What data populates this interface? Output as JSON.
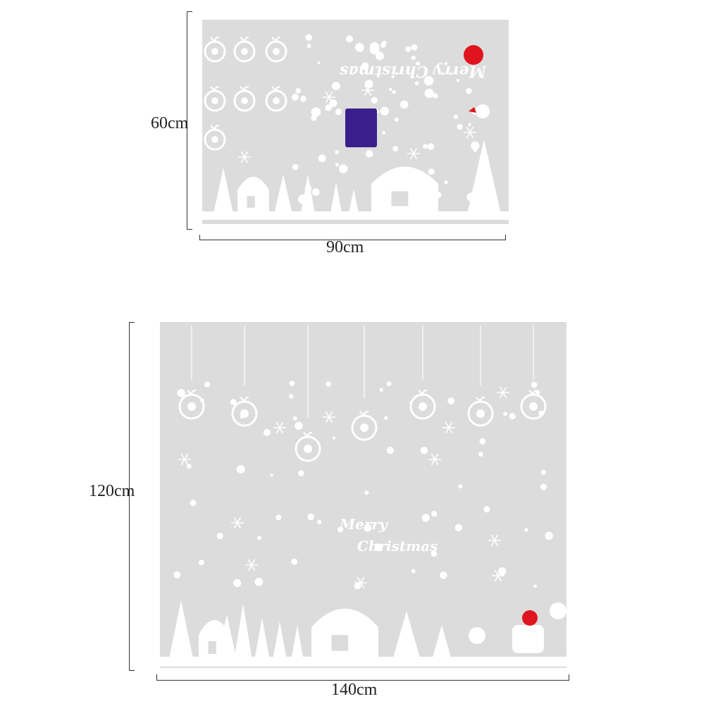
{
  "small_decal": {
    "width_label": "90cm",
    "height_label": "60cm",
    "greeting": "Merry Christmas",
    "background_color": "#dcdcdc",
    "accent_color": "#e0141e",
    "package_color": "#3a1f8c"
  },
  "large_decal": {
    "width_label": "140cm",
    "height_label": "120cm",
    "greeting_line1": "Merry",
    "greeting_line2": "Christmas",
    "background_color": "#dcdcdc",
    "accent_color": "#e0141e"
  }
}
